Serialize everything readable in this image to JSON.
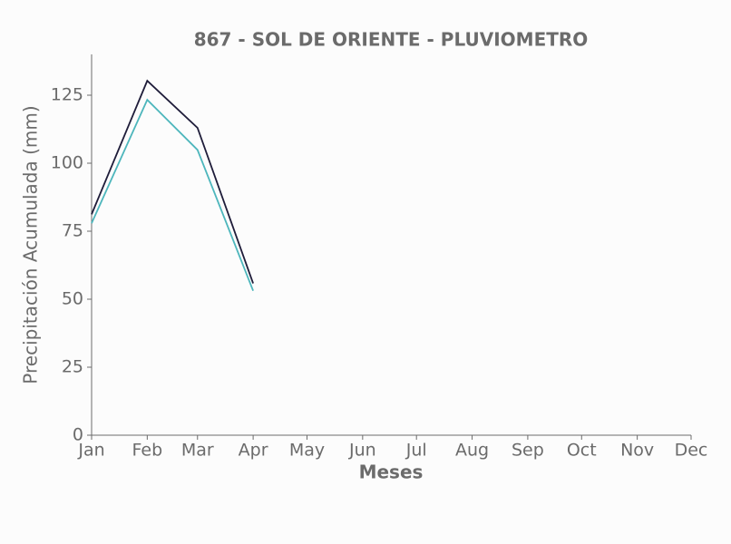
{
  "chart_data": {
    "type": "line",
    "title": "867 - SOL DE ORIENTE - PLUVIOMETRO",
    "x_label": "Meses",
    "y_label": "Precipitación Acumulada (mm)",
    "categories": [
      "Jan",
      "Feb",
      "Mar",
      "Apr",
      "May",
      "Jun",
      "Jul",
      "Aug",
      "Sep",
      "Oct",
      "Nov",
      "Dec"
    ],
    "series": [
      {
        "color": "#1f1d3a",
        "values": [
          81.2,
          130.3,
          113,
          55.8,
          null,
          null,
          null,
          null,
          null,
          null,
          null,
          null
        ]
      },
      {
        "color": "#4db6bc",
        "values": [
          77.9,
          123.3,
          104.9,
          53.1,
          null,
          null,
          null,
          null,
          null,
          null,
          null,
          null
        ]
      }
    ],
    "ylim": [
      0,
      140
    ],
    "yticks": [
      0,
      25,
      50,
      75,
      100,
      125
    ],
    "grid": false
  }
}
